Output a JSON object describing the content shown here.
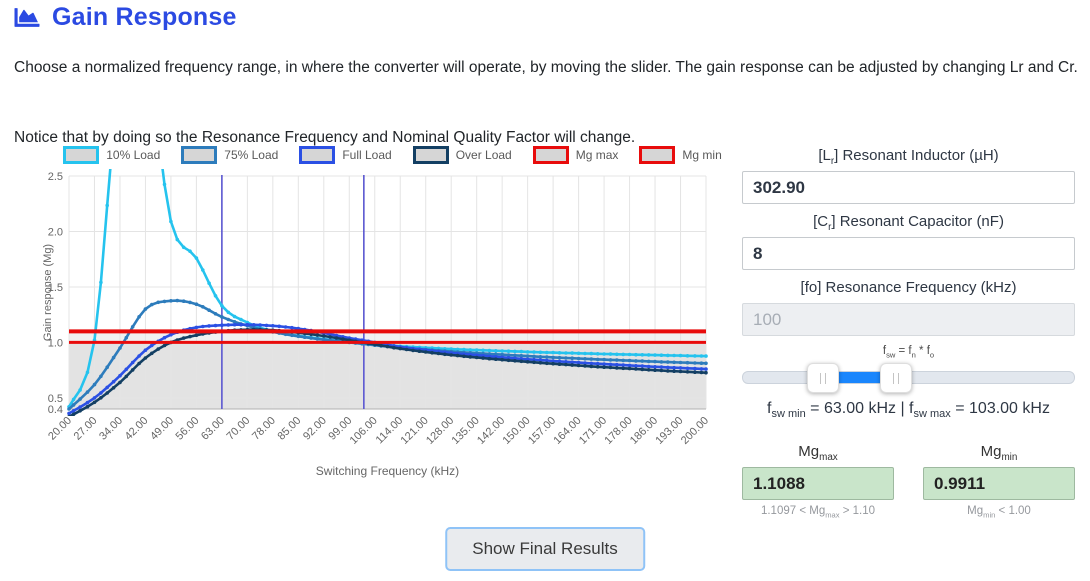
{
  "header": {
    "title": "Gain Response"
  },
  "desc": {
    "p1": "Choose a normalized frequency range, in where the converter will operate, by moving the slider. The gain response can be adjusted by changing Lr and Cr.",
    "p2": "Notice that by doing so the Resonance Frequency and Nominal Quality Factor will change."
  },
  "colors": {
    "accent_blue": "#2b4ae2",
    "slider_blue": "#1a86fd",
    "vline_indigo": "#5b57d1",
    "mg_red": "#e80c0c",
    "result_green_bg": "#c9e5ca",
    "legend_swatch_fill": "#d6d6d6"
  },
  "chart_data": {
    "type": "line",
    "xlabel": "Switching Frequency (kHz)",
    "ylabel": "Gain response (Mg)",
    "x": [
      20,
      27,
      34,
      42,
      49,
      56,
      63,
      70,
      78,
      85,
      92,
      99,
      106,
      114,
      121,
      128,
      135,
      142,
      150,
      157,
      164,
      171,
      178,
      186,
      193,
      200
    ],
    "ylim": [
      0.4,
      2.5
    ],
    "yticks": [
      2.5,
      2.0,
      1.5,
      1.0,
      0.5,
      0.4
    ],
    "grid": true,
    "legend_position": "top",
    "vlines": [
      63,
      103
    ],
    "series": [
      {
        "name": "10% Load",
        "color": "#25c3ee",
        "values": [
          0.42,
          1.02,
          3.4,
          3.6,
          2.09,
          1.76,
          1.33,
          1.18,
          1.1,
          1.06,
          1.03,
          1.005,
          0.985,
          0.965,
          0.952,
          0.94,
          0.931,
          0.923,
          0.915,
          0.908,
          0.902,
          0.896,
          0.891,
          0.886,
          0.881,
          0.877
        ]
      },
      {
        "name": "75% Load",
        "color": "#2d7cbc",
        "values": [
          0.4,
          0.62,
          0.95,
          1.3,
          1.375,
          1.345,
          1.23,
          1.15,
          1.095,
          1.055,
          1.025,
          1.0,
          0.975,
          0.952,
          0.935,
          0.918,
          0.903,
          0.89,
          0.877,
          0.865,
          0.855,
          0.845,
          0.836,
          0.827,
          0.819,
          0.812
        ]
      },
      {
        "name": "Full Load",
        "color": "#2b50e4",
        "values": [
          0.36,
          0.5,
          0.7,
          0.93,
          1.07,
          1.135,
          1.155,
          1.16,
          1.15,
          1.125,
          1.085,
          1.04,
          1.0,
          0.96,
          0.932,
          0.906,
          0.885,
          0.866,
          0.848,
          0.833,
          0.818,
          0.805,
          0.793,
          0.78,
          0.77,
          0.76
        ]
      },
      {
        "name": "Over Load",
        "color": "#133f63",
        "values": [
          0.33,
          0.46,
          0.64,
          0.86,
          1.0,
          1.065,
          1.1,
          1.115,
          1.11,
          1.088,
          1.058,
          1.02,
          0.982,
          0.944,
          0.914,
          0.887,
          0.864,
          0.844,
          0.825,
          0.808,
          0.792,
          0.777,
          0.764,
          0.75,
          0.738,
          0.727
        ]
      },
      {
        "name": "Mg max",
        "color": "#e80c0c",
        "value": 1.1,
        "lw": 4
      },
      {
        "name": "Mg min",
        "color": "#e80c0c",
        "value": 1.0,
        "lw": 3
      }
    ]
  },
  "panel": {
    "lr": {
      "label": [
        {
          "t": "[L"
        },
        {
          "s": "r"
        },
        {
          "t": "] Resonant Inductor (µH)"
        }
      ],
      "value": "302.90"
    },
    "cr": {
      "label": [
        {
          "t": "[C"
        },
        {
          "s": "r"
        },
        {
          "t": "] Resonant Capacitor (nF)"
        }
      ],
      "value": "8"
    },
    "fo": {
      "label": [
        {
          "t": "[fo] Resonance Frequency (kHz)"
        }
      ],
      "value": "100"
    },
    "slider": {
      "formula": [
        {
          "t": "f"
        },
        {
          "s": "sw"
        },
        {
          "t": " = f"
        },
        {
          "s": "n"
        },
        {
          "t": " * f"
        },
        {
          "s": "o"
        }
      ],
      "min_pct": 24,
      "max_pct": 46
    },
    "range_text": [
      {
        "t": "f"
      },
      {
        "s": "sw min"
      },
      {
        "t": " = 63.00 kHz | f"
      },
      {
        "s": "sw max"
      },
      {
        "t": " = 103.00 kHz"
      }
    ],
    "mgmax": {
      "label": [
        {
          "t": "Mg"
        },
        {
          "s": "max"
        }
      ],
      "value": "1.1088",
      "note": [
        {
          "t": "1.1097 < Mg"
        },
        {
          "s": "max"
        },
        {
          "t": " > 1.10"
        }
      ]
    },
    "mgmin": {
      "label": [
        {
          "t": "Mg"
        },
        {
          "s": "min"
        }
      ],
      "value": "0.9911",
      "note": [
        {
          "t": "Mg"
        },
        {
          "s": "min"
        },
        {
          "t": " < 1.00"
        }
      ]
    }
  },
  "footer": {
    "show_results_label": "Show Final Results"
  }
}
